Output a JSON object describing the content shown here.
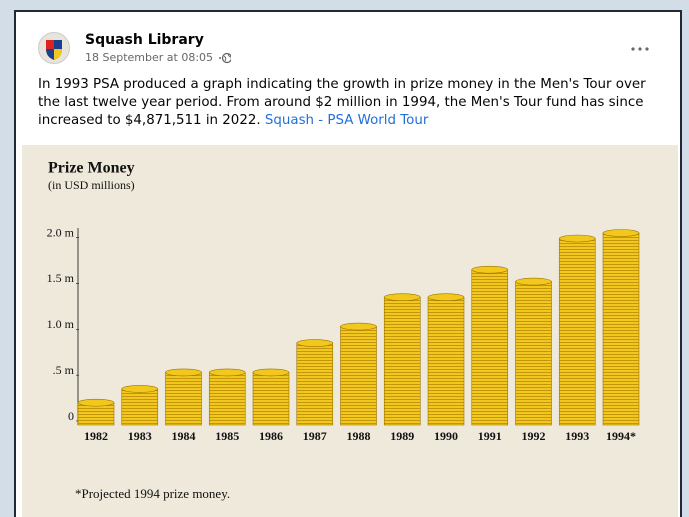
{
  "post": {
    "author": "Squash Library",
    "timestamp": "18 September at 08:05",
    "text": "In 1993 PSA produced a graph indicating the growth in prize money in the Men's Tour over the last twelve year period. From around $2 million in 1994, the Men's Tour fund has since increased to $4,871,511 in 2022.",
    "link": "Squash - PSA World Tour"
  },
  "chart_data": {
    "type": "bar",
    "title": "Prize Money",
    "subtitle": "(in USD millions)",
    "categories": [
      "1982",
      "1983",
      "1984",
      "1985",
      "1986",
      "1987",
      "1988",
      "1989",
      "1990",
      "1991",
      "1992",
      "1993",
      "1994*"
    ],
    "values": [
      0.2,
      0.35,
      0.53,
      0.53,
      0.53,
      0.85,
      1.03,
      1.35,
      1.35,
      1.65,
      1.52,
      1.99,
      2.05
    ],
    "color": "#f2c81e",
    "ylim": [
      0,
      2.05
    ],
    "yticks": [
      0,
      {
        "value": 0.5,
        "label": ".5 m"
      },
      {
        "value": 1.0,
        "label": "1.0 m"
      },
      {
        "value": 1.5,
        "label": "1.5 m"
      },
      {
        "value": 2.0,
        "label": "2.0 m"
      }
    ],
    "footnote": "*Projected 1994 prize money."
  }
}
